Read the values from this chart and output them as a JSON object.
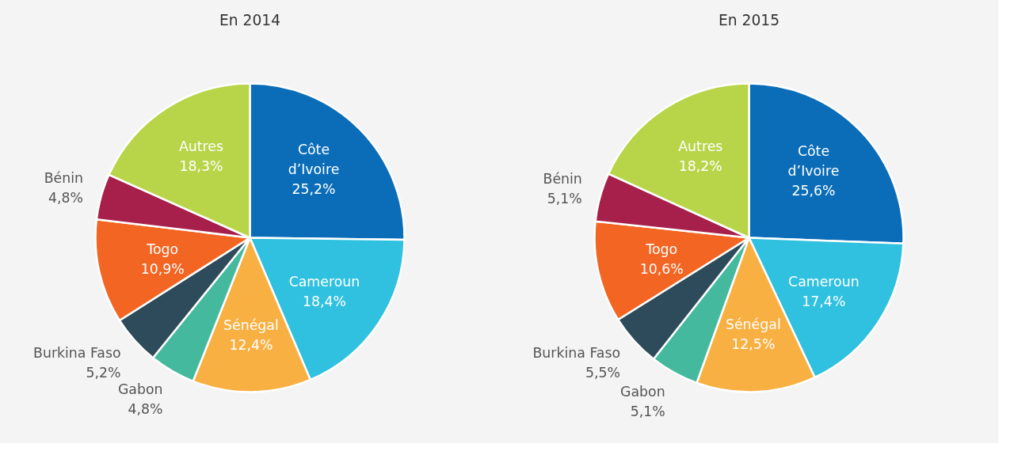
{
  "chart_data": [
    {
      "type": "pie",
      "title": "En 2014",
      "categories": [
        "Côte d’Ivoire",
        "Cameroun",
        "Sénégal",
        "Gabon",
        "Burkina Faso",
        "Togo",
        "Bénin",
        "Autres"
      ],
      "values": [
        25.2,
        18.4,
        12.4,
        4.8,
        5.2,
        10.9,
        4.8,
        18.3
      ],
      "value_labels": [
        "25,2%",
        "18,4%",
        "12,4%",
        "4,8%",
        "5,2%",
        "10,9%",
        "4,8%",
        "18,3%"
      ],
      "colors": [
        "#0b6db8",
        "#2fc1df",
        "#f9b042",
        "#44b99e",
        "#2e4b5b",
        "#f26522",
        "#a6204b",
        "#b8d54a"
      ]
    },
    {
      "type": "pie",
      "title": "En 2015",
      "categories": [
        "Côte d’Ivoire",
        "Cameroun",
        "Sénégal",
        "Gabon",
        "Burkina Faso",
        "Togo",
        "Bénin",
        "Autres"
      ],
      "values": [
        25.6,
        17.4,
        12.5,
        5.1,
        5.5,
        10.6,
        5.1,
        18.2
      ],
      "value_labels": [
        "25,6%",
        "17,4%",
        "12,5%",
        "5,1%",
        "5,5%",
        "10,6%",
        "5,1%",
        "18,2%"
      ],
      "colors": [
        "#0b6db8",
        "#2fc1df",
        "#f9b042",
        "#44b99e",
        "#2e4b5b",
        "#f26522",
        "#a6204b",
        "#b8d54a"
      ]
    }
  ]
}
